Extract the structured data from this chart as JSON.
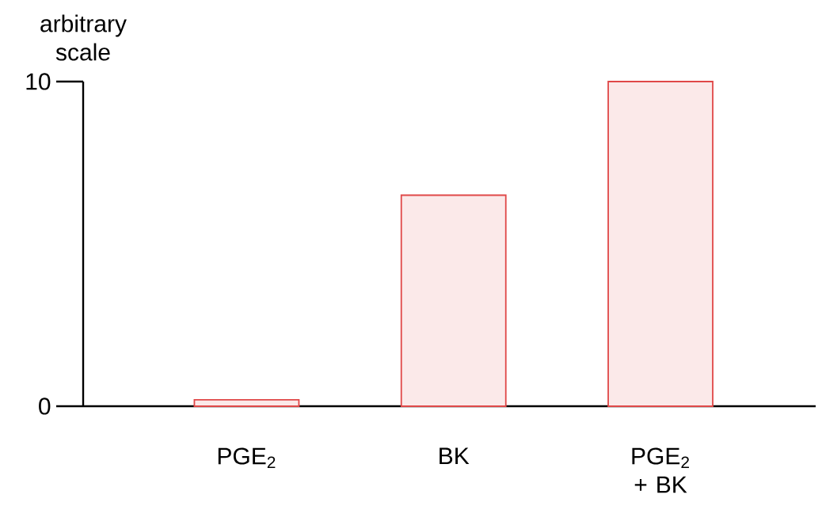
{
  "chart_data": {
    "type": "bar",
    "ylabel": "arbitrary scale",
    "categories": [
      "PGE$_{2}$",
      "BK",
      "PGE$_{2}$ + BK"
    ],
    "values": [
      0.2,
      6.5,
      10
    ],
    "color": "#e04848",
    "ylim": [
      0,
      10
    ],
    "yticks": [
      0,
      10
    ]
  }
}
